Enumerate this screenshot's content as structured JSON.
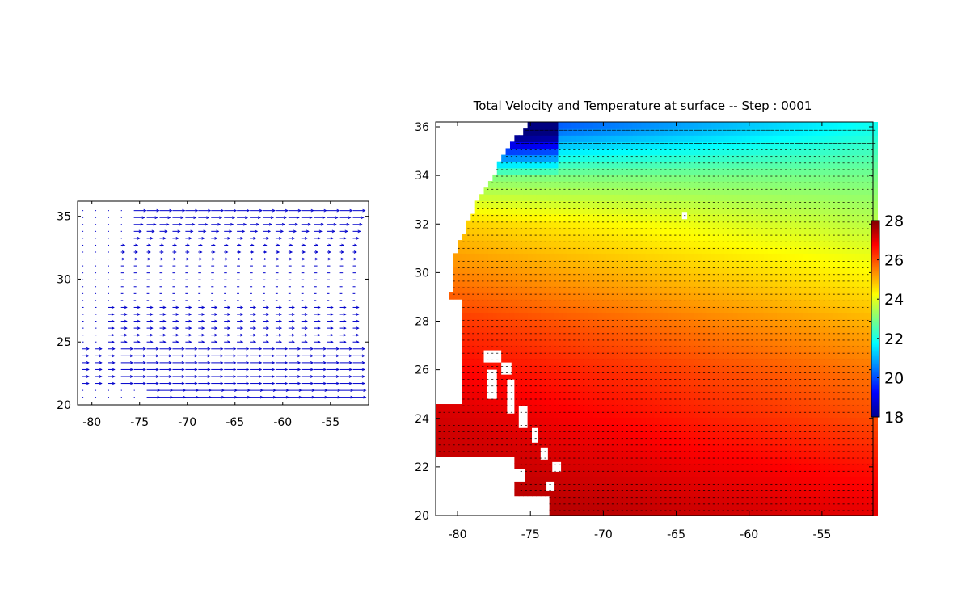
{
  "chart_data": [
    {
      "type": "quiver",
      "title": "",
      "xlabel": "",
      "ylabel": "",
      "xlim": [
        -81.5,
        -51
      ],
      "ylim": [
        20,
        36.2
      ],
      "xticks": [
        -80,
        -75,
        -70,
        -65,
        -60,
        -55
      ],
      "yticks": [
        20,
        25,
        30,
        35
      ],
      "arrow_color": "#0000cc",
      "grid": false,
      "field": "eastward velocity arrows, strongest in the north (~35.5) and in the south (~21-24), weak near the western coast"
    },
    {
      "type": "heatmap",
      "title": "Total Velocity and Temperature at surface -- Step : 0001",
      "xlabel": "",
      "ylabel": "",
      "xlim": [
        -81.5,
        -51.5
      ],
      "ylim": [
        20,
        36.2
      ],
      "xticks": [
        -80,
        -75,
        -70,
        -65,
        -60,
        -55
      ],
      "yticks": [
        20,
        22,
        24,
        26,
        28,
        30,
        32,
        34,
        36
      ],
      "colorbar": {
        "range": [
          18,
          28
        ],
        "ticks": [
          18,
          20,
          22,
          24,
          26,
          28
        ],
        "colormap": "jet",
        "placement": "right"
      },
      "temperature_profile": {
        "lat": [
          20,
          22,
          24,
          26,
          28,
          30,
          32,
          34,
          36
        ],
        "temp_east": [
          27.0,
          26.6,
          26.0,
          25.6,
          25.0,
          24.3,
          23.6,
          22.9,
          21.9
        ],
        "temp_west": [
          27.7,
          27.4,
          27.2,
          26.8,
          26.3,
          25.5,
          24.8,
          23.0,
          19.5
        ]
      },
      "land": [
        "Florida coast west of ~-79.5",
        "Bahamas islands -78 to -73, lat 21-26.5",
        "Cuba/Hispaniola coast south of 21"
      ],
      "arrow_color": "#000000",
      "grid": false
    }
  ]
}
